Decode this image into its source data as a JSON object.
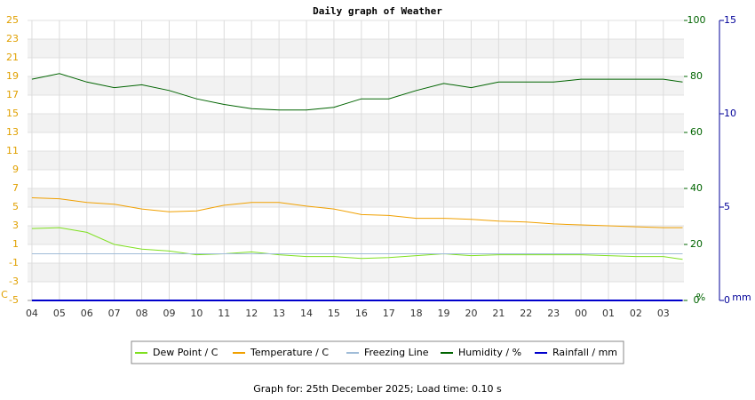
{
  "chart_data": {
    "type": "line",
    "title": "Daily graph of Weather",
    "footer": "Graph for: 25th December 2025; Load time: 0.10 s",
    "y_label": "C",
    "y2_label": "%",
    "y3_label": "mm",
    "x": [
      0,
      1,
      2,
      3,
      4,
      5,
      6,
      7,
      8,
      9,
      10,
      11,
      12,
      13,
      14,
      15,
      16,
      17,
      18,
      19,
      20,
      21,
      22,
      23,
      23.7
    ],
    "xlim": [
      -0.16,
      23.75
    ],
    "xticks": [
      {
        "value": 0,
        "label": "04"
      },
      {
        "value": 1,
        "label": "05"
      },
      {
        "value": 2,
        "label": "06"
      },
      {
        "value": 3,
        "label": "07"
      },
      {
        "value": 4,
        "label": "08"
      },
      {
        "value": 5,
        "label": "09"
      },
      {
        "value": 6,
        "label": "10"
      },
      {
        "value": 7,
        "label": "11"
      },
      {
        "value": 8,
        "label": "12"
      },
      {
        "value": 9,
        "label": "13"
      },
      {
        "value": 10,
        "label": "14"
      },
      {
        "value": 11,
        "label": "15"
      },
      {
        "value": 12,
        "label": "16"
      },
      {
        "value": 13,
        "label": "17"
      },
      {
        "value": 14,
        "label": "18"
      },
      {
        "value": 15,
        "label": "19"
      },
      {
        "value": 16,
        "label": "20"
      },
      {
        "value": 17,
        "label": "21"
      },
      {
        "value": 18,
        "label": "22"
      },
      {
        "value": 19,
        "label": "23"
      },
      {
        "value": 20,
        "label": "00"
      },
      {
        "value": 21,
        "label": "01"
      },
      {
        "value": 22,
        "label": "02"
      },
      {
        "value": 23,
        "label": "03"
      }
    ],
    "ylim": [
      -5,
      25
    ],
    "yticks": [
      -5,
      -3,
      -1,
      1,
      3,
      5,
      7,
      9,
      11,
      13,
      15,
      17,
      19,
      21,
      23,
      25
    ],
    "y2lim": [
      0,
      100
    ],
    "y2ticks": [
      0,
      20,
      40,
      60,
      80,
      100
    ],
    "y3lim": [
      0,
      15
    ],
    "y3ticks": [
      0,
      5,
      10,
      15
    ],
    "grid": true,
    "series": [
      {
        "name": "Dew Point / C",
        "color": "#7fe020",
        "axis": "y",
        "values": [
          2.7,
          2.8,
          2.3,
          1.0,
          0.5,
          0.3,
          -0.1,
          0.0,
          0.2,
          -0.1,
          -0.3,
          -0.3,
          -0.5,
          -0.4,
          -0.2,
          0.0,
          -0.2,
          -0.1,
          -0.1,
          -0.1,
          -0.1,
          -0.2,
          -0.3,
          -0.3,
          -0.6
        ]
      },
      {
        "name": "Temperature / C",
        "color": "#f0a000",
        "axis": "y",
        "values": [
          6.0,
          5.9,
          5.5,
          5.3,
          4.8,
          4.5,
          4.6,
          5.2,
          5.5,
          5.5,
          5.1,
          4.8,
          4.2,
          4.1,
          3.8,
          3.8,
          3.7,
          3.5,
          3.4,
          3.2,
          3.1,
          3.0,
          2.9,
          2.8,
          2.8
        ]
      },
      {
        "name": "Freezing Line",
        "color": "#a0bcd8",
        "axis": "y",
        "values": [
          0,
          0,
          0,
          0,
          0,
          0,
          0,
          0,
          0,
          0,
          0,
          0,
          0,
          0,
          0,
          0,
          0,
          0,
          0,
          0,
          0,
          0,
          0,
          0,
          0
        ]
      },
      {
        "name": "Humidity / %",
        "color": "#006400",
        "axis": "y2",
        "values": [
          79,
          81,
          78,
          76,
          77,
          75,
          72,
          70,
          68.5,
          68,
          68,
          69,
          72,
          72,
          75,
          77.5,
          76,
          78,
          78,
          78,
          79,
          79,
          79,
          79,
          78
        ]
      },
      {
        "name": "Rainfall / mm",
        "color": "#0000cc",
        "axis": "y3",
        "values": [
          0,
          0,
          0,
          0,
          0,
          0,
          0,
          0,
          0,
          0,
          0,
          0,
          0,
          0,
          0,
          0,
          0,
          0,
          0,
          0,
          0,
          0,
          0,
          0,
          0
        ]
      }
    ],
    "axis_colors": {
      "y": "#e0a000",
      "y2": "#006400",
      "y3": "#000099"
    }
  }
}
